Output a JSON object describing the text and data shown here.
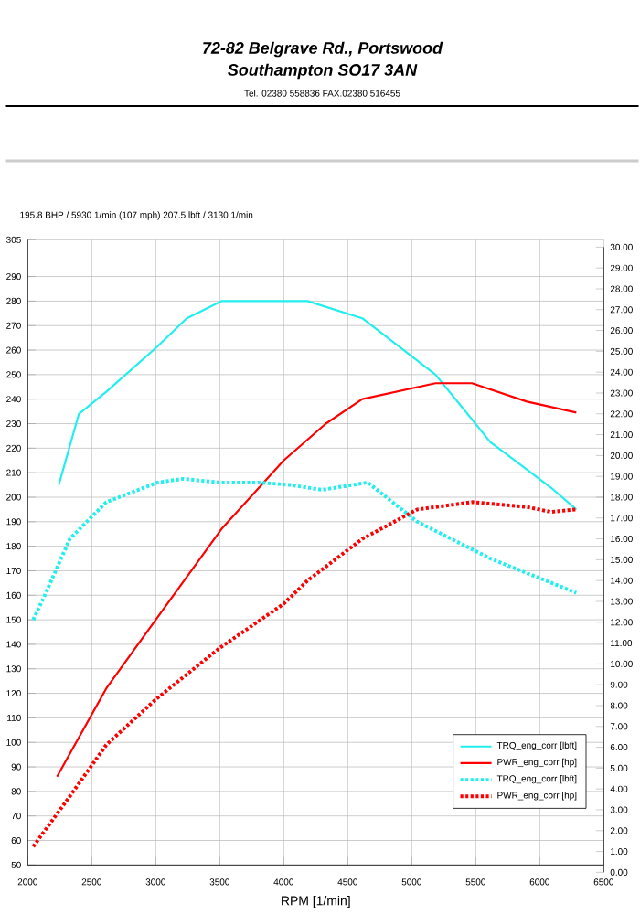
{
  "chart_data": {
    "type": "line",
    "title": "72-82 Belgrave Rd., Portswood",
    "subtitle": "Southampton SO17 3AN",
    "annotations": [
      "Tel. 02380 558836    FAX.02380 516455",
      "195.8 BHP / 5930 1/min (107 mph)    207.5 lbft / 3130 1/min"
    ],
    "xlabel": "RPM [1/min]",
    "xlim": [
      2000,
      6500
    ],
    "xticks": [
      2000,
      2500,
      3000,
      3500,
      4000,
      4500,
      5000,
      5500,
      6000,
      6500
    ],
    "ylim": [
      50,
      305
    ],
    "yticks": [
      50,
      60,
      70,
      80,
      90,
      100,
      110,
      120,
      130,
      140,
      150,
      160,
      170,
      180,
      190,
      200,
      210,
      220,
      230,
      240,
      250,
      260,
      270,
      280,
      290,
      305
    ],
    "y2lim": [
      0,
      30
    ],
    "y2ticks": [
      {
        "value": 0,
        "label": "0.00"
      },
      {
        "value": 1,
        "label": "1.00"
      },
      {
        "value": 2,
        "label": "2.00"
      },
      {
        "value": 3,
        "label": "3.00"
      },
      {
        "value": 4,
        "label": "4.00"
      },
      {
        "value": 5,
        "label": "5.00"
      },
      {
        "value": 6,
        "label": "6.00"
      },
      {
        "value": 7,
        "label": "7.00"
      },
      {
        "value": 8,
        "label": "8.00"
      },
      {
        "value": 9,
        "label": "9.00"
      },
      {
        "value": 10,
        "label": "10.00"
      },
      {
        "value": 11,
        "label": "11.00"
      },
      {
        "value": 12,
        "label": "12.00"
      },
      {
        "value": 13,
        "label": "13.00"
      },
      {
        "value": 14,
        "label": "14.00"
      },
      {
        "value": 15,
        "label": "15.00"
      },
      {
        "value": 16,
        "label": "16.00"
      },
      {
        "value": 17,
        "label": "17.00"
      },
      {
        "value": 18,
        "label": "18.00"
      },
      {
        "value": 19,
        "label": "19.00"
      },
      {
        "value": 20,
        "label": "20.00"
      },
      {
        "value": 21,
        "label": "21.00"
      },
      {
        "value": 22,
        "label": "22.00"
      },
      {
        "value": 23,
        "label": "23.00"
      },
      {
        "value": 24,
        "label": "24.00"
      },
      {
        "value": 25,
        "label": "25.00"
      },
      {
        "value": 26,
        "label": "26.00"
      },
      {
        "value": 27,
        "label": "27.00"
      },
      {
        "value": 28,
        "label": "28.00"
      },
      {
        "value": 29,
        "label": "29.00"
      },
      {
        "value": 30,
        "label": "30.00"
      }
    ],
    "grid": true,
    "legend": "bottom right",
    "series": [
      {
        "name": "TRQ_eng_corr [lbft]",
        "color": "#22eeee",
        "line_style": "solid",
        "x": [
          2243,
          2400,
          2614,
          3014,
          3243,
          3514,
          4186,
          4614,
          5186,
          5614,
          6086,
          6286
        ],
        "values": [
          205,
          234,
          243,
          261.5,
          273,
          280,
          280,
          273,
          250,
          222.5,
          204,
          195
        ]
      },
      {
        "name": "PWR_eng_corr [hp]",
        "color": "#ff0000",
        "line_style": "solid",
        "x": [
          2229,
          2614,
          3000,
          3514,
          4000,
          4329,
          4614,
          5186,
          5471,
          5900,
          6286
        ],
        "values": [
          86,
          122,
          150,
          187,
          215,
          230,
          240,
          246.5,
          246.5,
          239,
          234.5
        ]
      },
      {
        "name": "TRQ_eng_corr [lbft]",
        "color": "#22eeee",
        "line_style": "dotted",
        "x": [
          2043,
          2129,
          2329,
          2614,
          3014,
          3214,
          3500,
          3800,
          4050,
          4300,
          4657,
          5043,
          5614,
          6286
        ],
        "values": [
          150,
          159.5,
          183,
          198,
          206,
          207.5,
          206,
          206,
          205,
          203,
          206,
          190,
          175,
          161
        ]
      },
      {
        "name": "PWR_eng_corr [hp]",
        "color": "#ff0000",
        "line_style": "dotted",
        "x": [
          2043,
          2329,
          2614,
          3000,
          3500,
          4000,
          4186,
          4614,
          5043,
          5471,
          5900,
          6086,
          6286
        ],
        "values": [
          57.5,
          78,
          99,
          117.5,
          138.5,
          156.5,
          166,
          183,
          195,
          198,
          196,
          194,
          195
        ]
      }
    ]
  }
}
